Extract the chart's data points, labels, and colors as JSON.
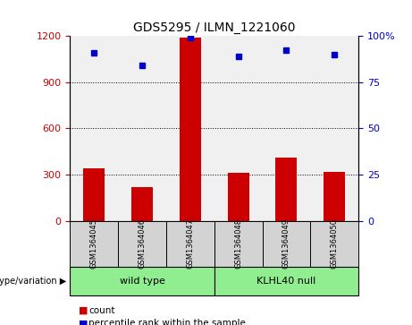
{
  "title": "GDS5295 / ILMN_1221060",
  "samples": [
    "GSM1364045",
    "GSM1364046",
    "GSM1364047",
    "GSM1364048",
    "GSM1364049",
    "GSM1364050"
  ],
  "counts": [
    340,
    220,
    1190,
    310,
    410,
    320
  ],
  "percentile_ranks": [
    91,
    84,
    99,
    89,
    92,
    90
  ],
  "groups": [
    {
      "label": "wild type",
      "indices": [
        0,
        1,
        2
      ],
      "color": "#90EE90"
    },
    {
      "label": "KLHL40 null",
      "indices": [
        3,
        4,
        5
      ],
      "color": "#90EE90"
    }
  ],
  "bar_color": "#cc0000",
  "dot_color": "#0000cc",
  "left_yaxis_color": "#cc0000",
  "right_yaxis_color": "#0000cc",
  "left_ylim": [
    0,
    1200
  ],
  "right_ylim": [
    0,
    100
  ],
  "left_yticks": [
    0,
    300,
    600,
    900,
    1200
  ],
  "right_yticks": [
    0,
    25,
    50,
    75,
    100
  ],
  "right_yticklabels": [
    "0",
    "25",
    "50",
    "75",
    "100%"
  ],
  "grid_values": [
    300,
    600,
    900
  ],
  "plot_bg_color": "#f0f0f0",
  "sample_box_color": "#d3d3d3",
  "group_colors": [
    "#90EE90",
    "#90EE90"
  ],
  "legend_items": [
    {
      "color": "#cc0000",
      "label": "count"
    },
    {
      "color": "#0000cc",
      "label": "percentile rank within the sample"
    }
  ],
  "genotype_label": "genotype/variation"
}
